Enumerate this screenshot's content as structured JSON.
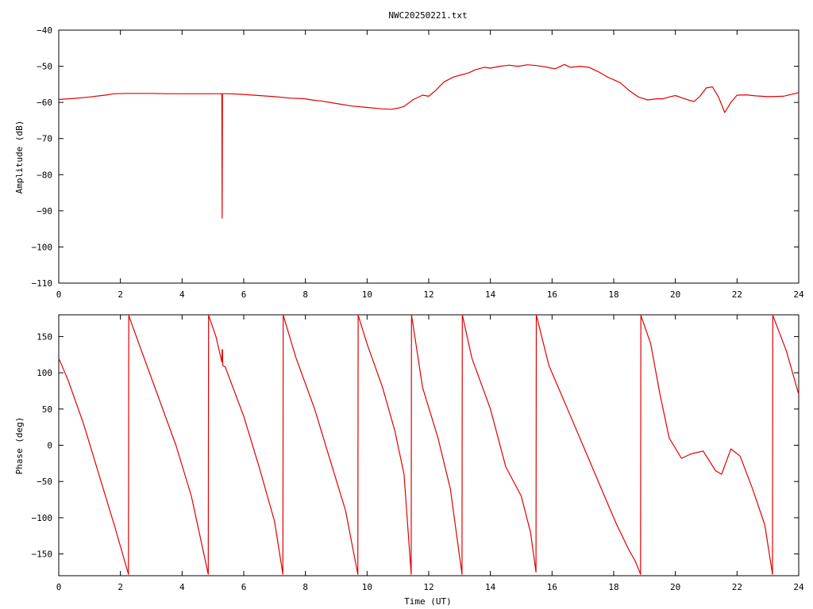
{
  "chart_data": [
    {
      "type": "line",
      "title": "NWC20250221.txt",
      "xlabel": "",
      "ylabel": "Amplitude (dB)",
      "xlim": [
        0,
        24
      ],
      "ylim": [
        -110,
        -40
      ],
      "xticks": [
        0,
        2,
        4,
        6,
        8,
        10,
        12,
        14,
        16,
        18,
        20,
        22,
        24
      ],
      "yticks": [
        -110,
        -100,
        -90,
        -80,
        -70,
        -60,
        -50,
        -40
      ],
      "grid": false,
      "color": "#e00000",
      "series": [
        {
          "x": [
            0,
            0.5,
            1,
            1.5,
            1.8,
            2.2,
            2.5,
            3,
            3.5,
            4,
            4.5,
            5,
            5.29,
            5.3,
            5.31,
            5.5,
            6,
            6.5,
            7,
            7.5,
            8,
            8.2,
            8.5,
            9,
            9.5,
            10,
            10.5,
            10.8,
            11,
            11.2,
            11.5,
            11.8,
            12,
            12.2,
            12.5,
            12.8,
            13,
            13.3,
            13.5,
            13.8,
            14,
            14.3,
            14.6,
            14.9,
            15.2,
            15.5,
            15.8,
            16.1,
            16.4,
            16.6,
            16.9,
            17.2,
            17.5,
            17.8,
            18.2,
            18.5,
            18.8,
            19.1,
            19.4,
            19.6,
            19.8,
            20,
            20.3,
            20.6,
            20.8,
            21,
            21.2,
            21.4,
            21.6,
            21.8,
            22,
            22.3,
            22.6,
            23,
            23.5,
            24
          ],
          "y": [
            -59.2,
            -58.9,
            -58.5,
            -58.0,
            -57.6,
            -57.5,
            -57.5,
            -57.5,
            -57.6,
            -57.6,
            -57.6,
            -57.6,
            -57.6,
            -92,
            -57.6,
            -57.6,
            -57.8,
            -58.1,
            -58.4,
            -58.8,
            -59.0,
            -59.3,
            -59.6,
            -60.3,
            -61.0,
            -61.4,
            -61.8,
            -61.9,
            -61.6,
            -61.1,
            -59.2,
            -58.0,
            -58.3,
            -56.9,
            -54.3,
            -53.0,
            -52.5,
            -51.8,
            -51.0,
            -50.3,
            -50.5,
            -50.0,
            -49.7,
            -50.0,
            -49.6,
            -49.8,
            -50.2,
            -50.7,
            -49.5,
            -50.3,
            -50.0,
            -50.3,
            -51.5,
            -53.0,
            -54.5,
            -56.7,
            -58.5,
            -59.3,
            -59.0,
            -59.0,
            -58.5,
            -58.1,
            -59.0,
            -59.8,
            -58.3,
            -56.0,
            -55.7,
            -58.5,
            -62.8,
            -60.0,
            -58.0,
            -57.9,
            -58.2,
            -58.4,
            -58.3,
            -57.3
          ]
        }
      ]
    },
    {
      "type": "line",
      "title": "",
      "xlabel": "Time (UT)",
      "ylabel": "Phase (deg)",
      "xlim": [
        0,
        24
      ],
      "ylim": [
        -180,
        180
      ],
      "xticks": [
        0,
        2,
        4,
        6,
        8,
        10,
        12,
        14,
        16,
        18,
        20,
        22,
        24
      ],
      "yticks": [
        -150,
        -100,
        -50,
        0,
        50,
        100,
        150
      ],
      "grid": false,
      "color": "#e00000",
      "series": [
        {
          "x": [
            0,
            0.3,
            0.8,
            1.3,
            1.8,
            2.26,
            2.27,
            2.28,
            2.6,
            3.2,
            3.8,
            4.3,
            4.85,
            4.86,
            4.87,
            5.1,
            5.29,
            5.3,
            5.31,
            5.32,
            5.4,
            6,
            6.5,
            7.0,
            7.27,
            7.28,
            7.29,
            7.7,
            8.3,
            8.8,
            9.3,
            9.7,
            9.71,
            9.72,
            10.0,
            10.5,
            10.9,
            11.2,
            11.43,
            11.44,
            11.45,
            11.8,
            12.3,
            12.7,
            13.08,
            13.09,
            13.1,
            13.4,
            14.0,
            14.5,
            15.0,
            15.3,
            15.48,
            15.49,
            15.5,
            15.9,
            16.5,
            17.1,
            17.7,
            18.1,
            18.5,
            18.7,
            18.87,
            18.88,
            18.89,
            19.2,
            19.5,
            19.8,
            20.2,
            20.5,
            20.9,
            21.3,
            21.5,
            21.8,
            22.1,
            22.5,
            22.9,
            23.15,
            23.16,
            23.17,
            23.6,
            24
          ],
          "y": [
            120,
            90,
            30,
            -40,
            -110,
            -178,
            180,
            178,
            140,
            70,
            0,
            -70,
            -178,
            180,
            178,
            150,
            115,
            132,
            132,
            110,
            108,
            40,
            -30,
            -105,
            -178,
            180,
            178,
            120,
            50,
            -20,
            -90,
            -178,
            180,
            178,
            140,
            80,
            20,
            -40,
            -178,
            180,
            178,
            80,
            10,
            -60,
            -178,
            180,
            178,
            120,
            50,
            -30,
            -70,
            -120,
            -175,
            180,
            178,
            110,
            50,
            -10,
            -70,
            -110,
            -145,
            -160,
            -178,
            180,
            178,
            140,
            70,
            10,
            -18,
            -12,
            -8,
            -35,
            -40,
            -5,
            -15,
            -60,
            -110,
            -178,
            180,
            178,
            130,
            70
          ]
        }
      ]
    }
  ]
}
